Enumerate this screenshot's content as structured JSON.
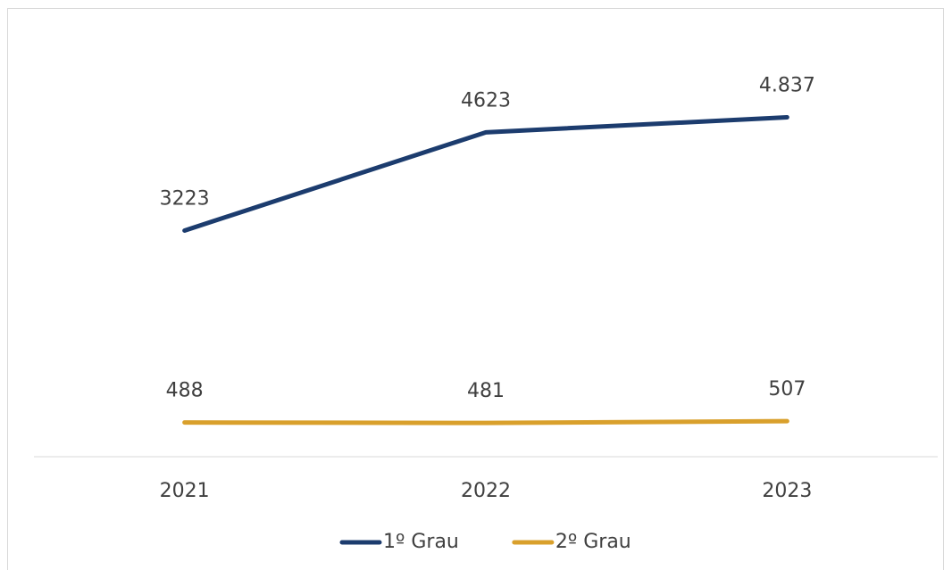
{
  "chart_data": {
    "type": "line",
    "categories": [
      "2021",
      "2022",
      "2023"
    ],
    "series": [
      {
        "name": "1º Grau",
        "color": "#1c3c6e",
        "values": [
          3223,
          4623,
          4837
        ],
        "value_labels": [
          "3223",
          "4623",
          "4.837"
        ]
      },
      {
        "name": "2º Grau",
        "color": "#d9a02c",
        "values": [
          488,
          481,
          507
        ]
      }
    ],
    "ylim": [
      0,
      6000
    ],
    "legend": "bottom"
  }
}
